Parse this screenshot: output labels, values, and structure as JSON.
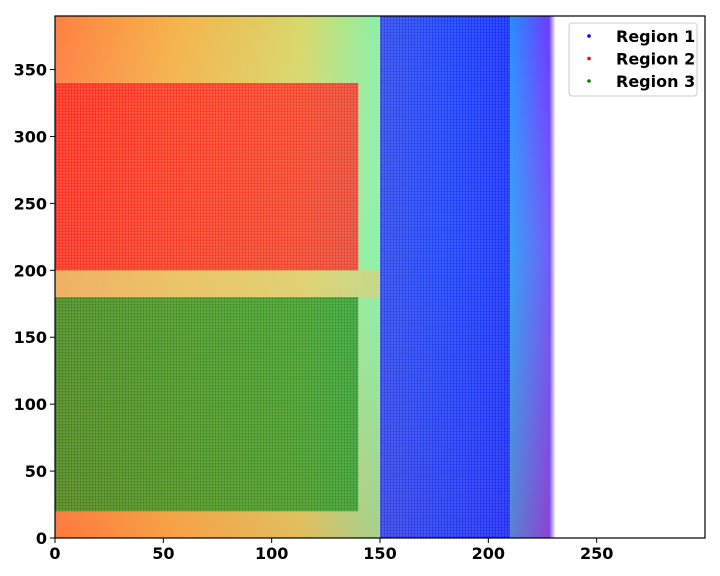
{
  "chart_data": {
    "type": "scatter",
    "title": "",
    "xlabel": "",
    "ylabel": "",
    "xlim": [
      0,
      300
    ],
    "ylim": [
      0,
      390
    ],
    "xticks": [
      0,
      50,
      100,
      150,
      200,
      250
    ],
    "yticks": [
      0,
      50,
      100,
      150,
      200,
      250,
      300,
      350
    ],
    "grid": false,
    "legend_position": "top-right",
    "background": {
      "kind": "heatmap field",
      "colormap": "rainbow",
      "description": "mostly orange/yellow-green values on the left, cyan/blue band near x 150-225, white (no data) beyond x~225"
    },
    "series": [
      {
        "name": "Region 1",
        "color": "#0000ff",
        "region": {
          "x": [
            150,
            210
          ],
          "y": [
            0,
            390
          ]
        }
      },
      {
        "name": "Region 2",
        "color": "#ff0000",
        "region": {
          "x": [
            0,
            140
          ],
          "y": [
            200,
            340
          ]
        }
      },
      {
        "name": "Region 3",
        "color": "#008000",
        "region": {
          "x": [
            0,
            140
          ],
          "y": [
            20,
            180
          ]
        }
      }
    ]
  }
}
